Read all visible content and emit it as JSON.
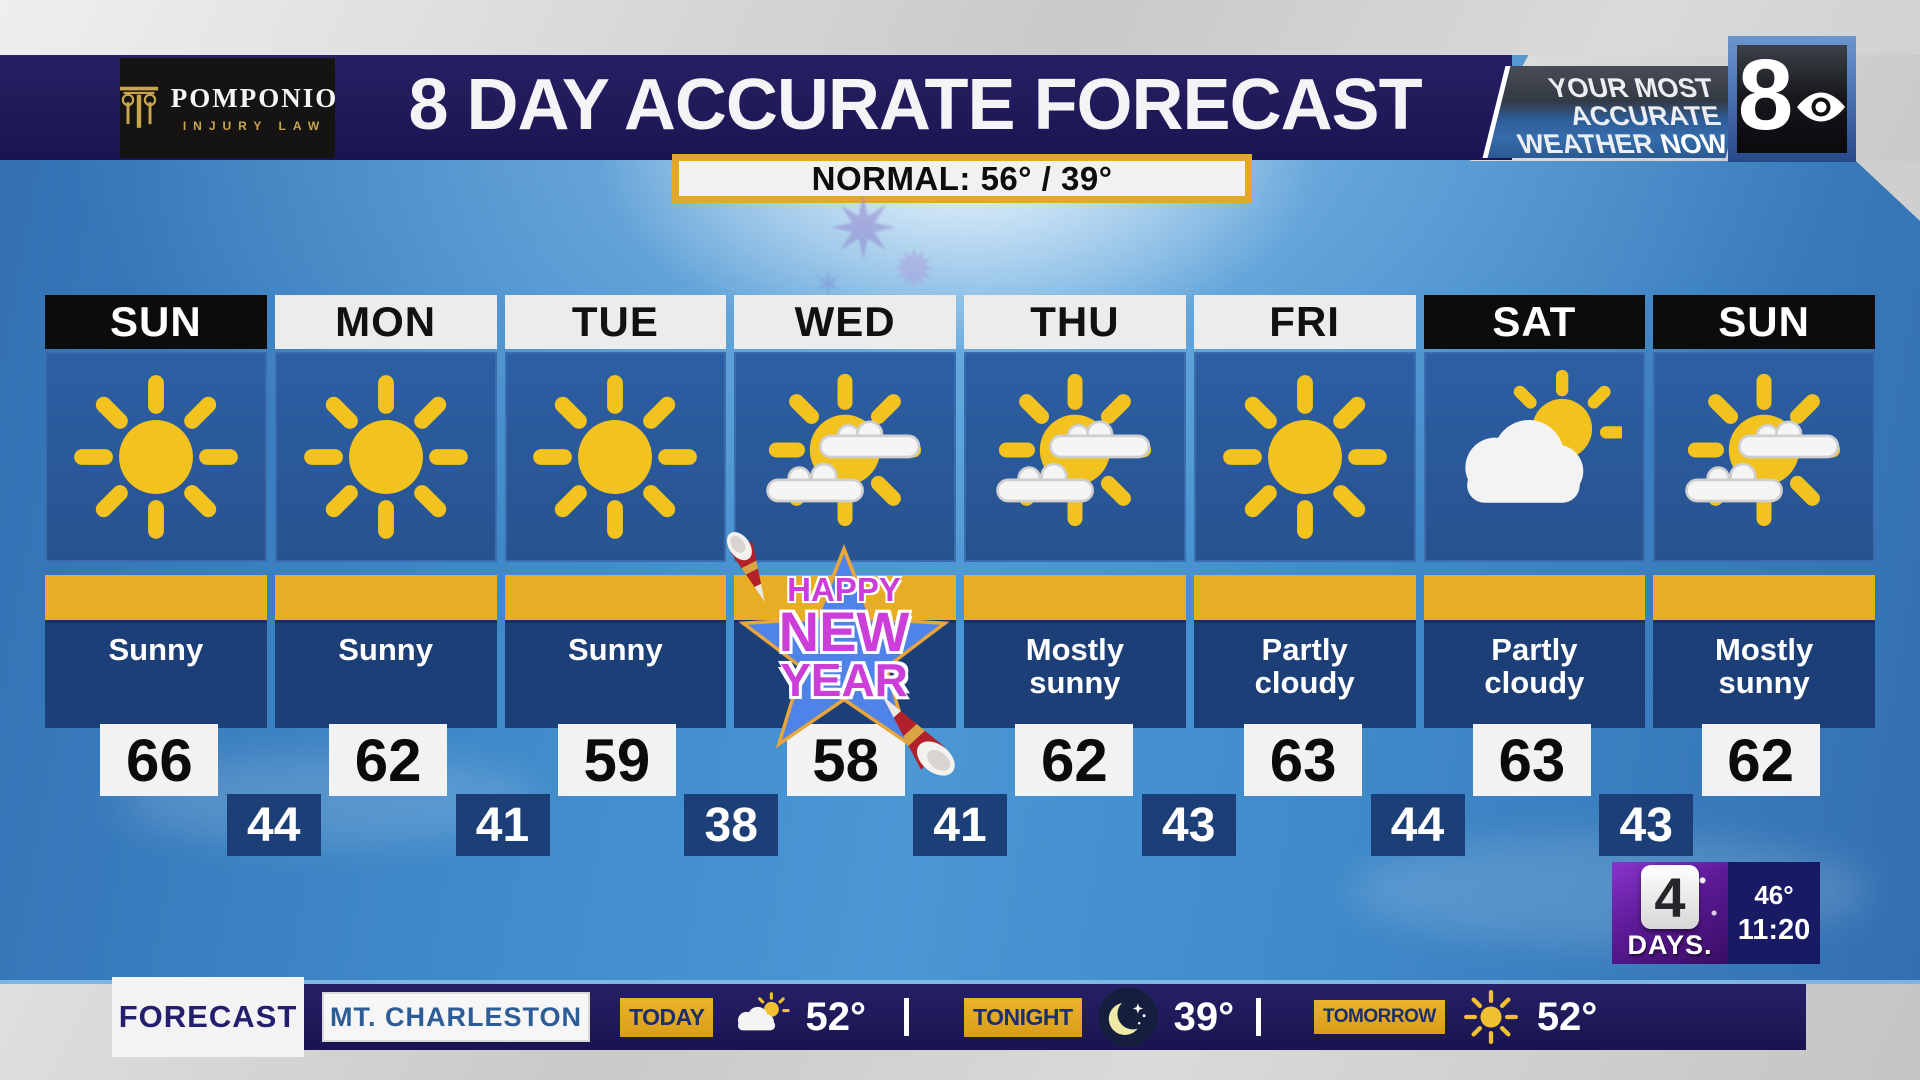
{
  "header": {
    "sponsor_name": "POMPONIO",
    "sponsor_sub": "INJURY LAW",
    "title": "8 DAY ACCURATE FORECAST",
    "badge_line1": "YOUR MOST",
    "badge_line2": "ACCURATE",
    "badge_line3": "WEATHER",
    "badge_line3_bold": "NOW",
    "station_number": "8"
  },
  "normal_banner": "NORMAL: 56° / 39°",
  "forecast": {
    "days": [
      {
        "label": "SUN",
        "theme": "dark",
        "icon": "sunny",
        "condition": "Sunny",
        "high": "66"
      },
      {
        "label": "MON",
        "theme": "light",
        "icon": "sunny",
        "condition": "Sunny",
        "high": "62"
      },
      {
        "label": "TUE",
        "theme": "light",
        "icon": "sunny",
        "condition": "Sunny",
        "high": "59"
      },
      {
        "label": "WED",
        "theme": "light",
        "icon": "mostly-sunny",
        "condition": "",
        "high": "58"
      },
      {
        "label": "THU",
        "theme": "light",
        "icon": "mostly-sunny",
        "condition": "Mostly\nsunny",
        "high": "62"
      },
      {
        "label": "FRI",
        "theme": "light",
        "icon": "sunny",
        "condition": "Partly\ncloudy",
        "high": "63"
      },
      {
        "label": "SAT",
        "theme": "dark",
        "icon": "partly-cloudy",
        "condition": "Partly\ncloudy",
        "high": "63"
      },
      {
        "label": "SUN",
        "theme": "dark",
        "icon": "mostly-sunny",
        "condition": "Mostly\nsunny",
        "high": "62"
      }
    ],
    "lows": [
      "44",
      "41",
      "38",
      "41",
      "43",
      "44",
      "43"
    ],
    "new_year": {
      "line1": "HAPPY",
      "line2": "NEW",
      "line3": "YEAR"
    }
  },
  "countdown": {
    "number": "4",
    "label": "DAYS.",
    "temp": "46°",
    "time": "11:20"
  },
  "lower_third": {
    "left_label": "FORECAST",
    "location": "MT. CHARLESTON",
    "segments": [
      {
        "label": "TODAY",
        "icon": "cloud-sun",
        "temp": "52°"
      },
      {
        "label": "TONIGHT",
        "icon": "moon",
        "temp": "39°"
      },
      {
        "label": "TOMORROW",
        "icon": "sun",
        "temp": "52°"
      }
    ]
  },
  "colors": {
    "header_navy": "#1e1863",
    "gold": "#e7ae25",
    "panel_blue": "#2a5a9c",
    "condition_navy": "#1d3f78",
    "sky_blue": "#3b82c4",
    "countdown_purple": "#5c1a96",
    "day_header_light": "#ececec",
    "day_header_dark": "#0c0c0c"
  }
}
